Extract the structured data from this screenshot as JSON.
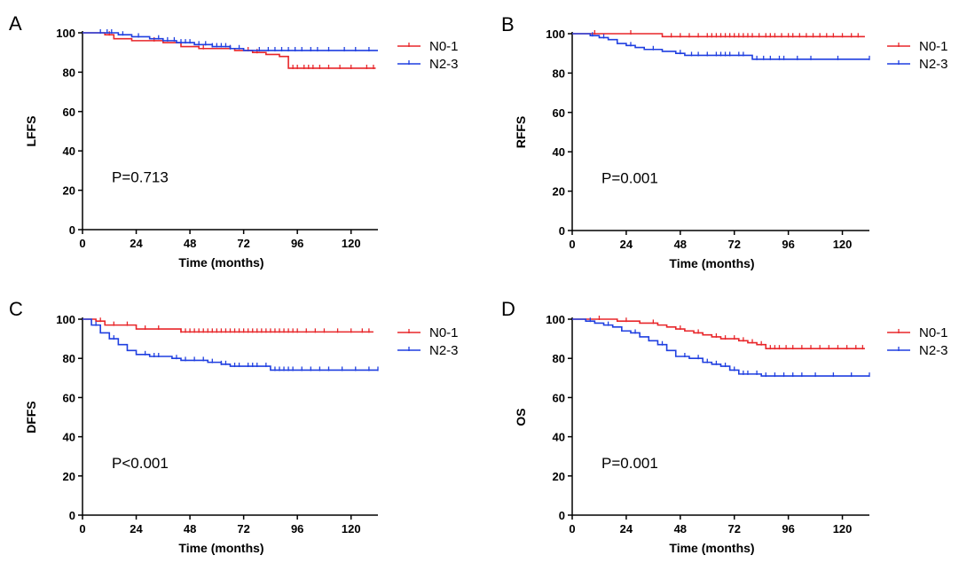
{
  "figure": {
    "chart_data": [
      {
        "type": "line",
        "panel": "A",
        "ylabel": "LFFS",
        "xlabel": "Time (months)",
        "xlim": [
          0,
          132
        ],
        "ylim": [
          0,
          100
        ],
        "xticks": [
          0,
          24,
          48,
          72,
          96,
          120
        ],
        "yticks": [
          0,
          20,
          40,
          60,
          80,
          100
        ],
        "annotation": "P=0.713",
        "legend_position": "top-right",
        "series": [
          {
            "name": "N0-1",
            "color": "#e8262a",
            "x": [
              0,
              10,
              14,
              22,
              30,
              36,
              44,
              52,
              60,
              68,
              76,
              82,
              88,
              92,
              92,
              131
            ],
            "y": [
              100,
              99,
              97,
              96,
              96,
              95,
              93,
              92,
              92,
              91,
              90,
              89,
              88,
              88,
              82,
              82
            ],
            "censor_x": [
              12,
              32,
              54,
              66,
              74,
              78,
              94,
              96,
              99,
              101,
              103,
              106,
              110,
              115,
              120,
              127,
              130
            ]
          },
          {
            "name": "N2-3",
            "color": "#1f3fe0",
            "x": [
              0,
              10,
              16,
              22,
              30,
              36,
              42,
              50,
              58,
              66,
              72,
              80,
              88,
              96,
              132
            ],
            "y": [
              100,
              100,
              99,
              98,
              97,
              96,
              95,
              94,
              93,
              92,
              91,
              91,
              91,
              91,
              91
            ],
            "censor_x": [
              8,
              11,
              13,
              18,
              25,
              34,
              38,
              41,
              44,
              46,
              48,
              52,
              55,
              58,
              60,
              62,
              64,
              66,
              70,
              79,
              83,
              86,
              89,
              92,
              95,
              98,
              102,
              105,
              110,
              117,
              122,
              128
            ]
          }
        ]
      },
      {
        "type": "line",
        "panel": "B",
        "ylabel": "RFFS",
        "xlabel": "Time (months)",
        "xlim": [
          0,
          132
        ],
        "ylim": [
          0,
          100
        ],
        "xticks": [
          0,
          24,
          48,
          72,
          96,
          120
        ],
        "yticks": [
          0,
          20,
          40,
          60,
          80,
          100
        ],
        "annotation": "P=0.001",
        "legend_position": "top-right",
        "series": [
          {
            "name": "N0-1",
            "color": "#e8262a",
            "x": [
              0,
              40,
              40,
              130
            ],
            "y": [
              100,
              100,
              98.5,
              98.5
            ],
            "censor_x": [
              10,
              26,
              44,
              48,
              52,
              56,
              60,
              62,
              64,
              66,
              68,
              70,
              72,
              74,
              76,
              78,
              80,
              83,
              86,
              88,
              90,
              93,
              96,
              98,
              101,
              104,
              107,
              110,
              113,
              116,
              120,
              124,
              127
            ]
          },
          {
            "name": "N2-3",
            "color": "#1f3fe0",
            "x": [
              0,
              8,
              12,
              16,
              20,
              24,
              28,
              32,
              40,
              46,
              50,
              62,
              72,
              80,
              132
            ],
            "y": [
              100,
              99,
              98,
              97,
              95,
              94,
              93,
              92,
              91,
              90,
              89,
              89,
              89,
              87,
              87
            ],
            "censor_x": [
              9,
              14,
              26,
              36,
              48,
              53,
              56,
              60,
              64,
              66,
              68,
              70,
              74,
              76,
              82,
              85,
              88,
              92,
              94,
              100,
              106,
              118,
              132
            ]
          }
        ]
      },
      {
        "type": "line",
        "panel": "C",
        "ylabel": "DFFS",
        "xlabel": "Time (months)",
        "xlim": [
          0,
          132
        ],
        "ylim": [
          0,
          100
        ],
        "xticks": [
          0,
          24,
          48,
          72,
          96,
          120
        ],
        "yticks": [
          0,
          20,
          40,
          60,
          80,
          100
        ],
        "annotation": "P<0.001",
        "legend_position": "top-right",
        "series": [
          {
            "name": "N0-1",
            "color": "#e8262a",
            "x": [
              0,
              6,
              10,
              24,
              40,
              44,
              130
            ],
            "y": [
              100,
              99,
              97,
              95,
              95,
              93.5,
              93.5
            ],
            "censor_x": [
              8,
              14,
              20,
              28,
              34,
              44,
              46,
              48,
              50,
              52,
              54,
              56,
              58,
              60,
              62,
              64,
              66,
              68,
              70,
              72,
              74,
              76,
              78,
              80,
              82,
              84,
              86,
              88,
              90,
              92,
              94,
              96,
              100,
              104,
              108,
              114,
              120,
              125,
              128
            ]
          },
          {
            "name": "N2-3",
            "color": "#1f3fe0",
            "x": [
              0,
              4,
              8,
              12,
              16,
              20,
              24,
              30,
              36,
              40,
              44,
              48,
              56,
              62,
              66,
              72,
              80,
              84,
              132
            ],
            "y": [
              100,
              97,
              93,
              90,
              87,
              84,
              82,
              81,
              81,
              80,
              79,
              79,
              78,
              77,
              76,
              76,
              76,
              74,
              74
            ],
            "censor_x": [
              6,
              14,
              28,
              32,
              34,
              42,
              46,
              50,
              54,
              58,
              62,
              64,
              68,
              70,
              74,
              76,
              78,
              82,
              86,
              88,
              90,
              92,
              94,
              98,
              102,
              106,
              110,
              116,
              122,
              128,
              132
            ]
          }
        ]
      },
      {
        "type": "line",
        "panel": "D",
        "ylabel": "OS",
        "xlabel": "Time (months)",
        "xlim": [
          0,
          132
        ],
        "ylim": [
          0,
          100
        ],
        "xticks": [
          0,
          24,
          48,
          72,
          96,
          120
        ],
        "yticks": [
          0,
          20,
          40,
          60,
          80,
          100
        ],
        "annotation": "P=0.001",
        "legend_position": "top-right",
        "series": [
          {
            "name": "N0-1",
            "color": "#e8262a",
            "x": [
              0,
              10,
              20,
              30,
              38,
              42,
              46,
              50,
              54,
              58,
              62,
              66,
              70,
              74,
              78,
              82,
              86,
              130
            ],
            "y": [
              100,
              100,
              99,
              98,
              97,
              96,
              95,
              94,
              93,
              92,
              91,
              90,
              90,
              89,
              88,
              87,
              85,
              85
            ],
            "censor_x": [
              12,
              24,
              36,
              48,
              56,
              64,
              68,
              72,
              76,
              80,
              84,
              88,
              90,
              92,
              95,
              98,
              102,
              106,
              110,
              114,
              118,
              122,
              126,
              129
            ]
          },
          {
            "name": "N2-3",
            "color": "#1f3fe0",
            "x": [
              0,
              6,
              10,
              14,
              18,
              22,
              26,
              30,
              34,
              38,
              42,
              46,
              52,
              58,
              62,
              66,
              70,
              74,
              80,
              84,
              132
            ],
            "y": [
              100,
              99,
              98,
              97,
              96,
              94,
              93,
              91,
              89,
              87,
              84,
              81,
              80,
              78,
              77,
              76,
              74,
              72,
              72,
              71,
              71
            ],
            "censor_x": [
              8,
              16,
              28,
              40,
              50,
              56,
              60,
              64,
              68,
              72,
              76,
              78,
              82,
              86,
              90,
              94,
              98,
              102,
              108,
              116,
              124,
              132
            ]
          }
        ]
      }
    ]
  }
}
